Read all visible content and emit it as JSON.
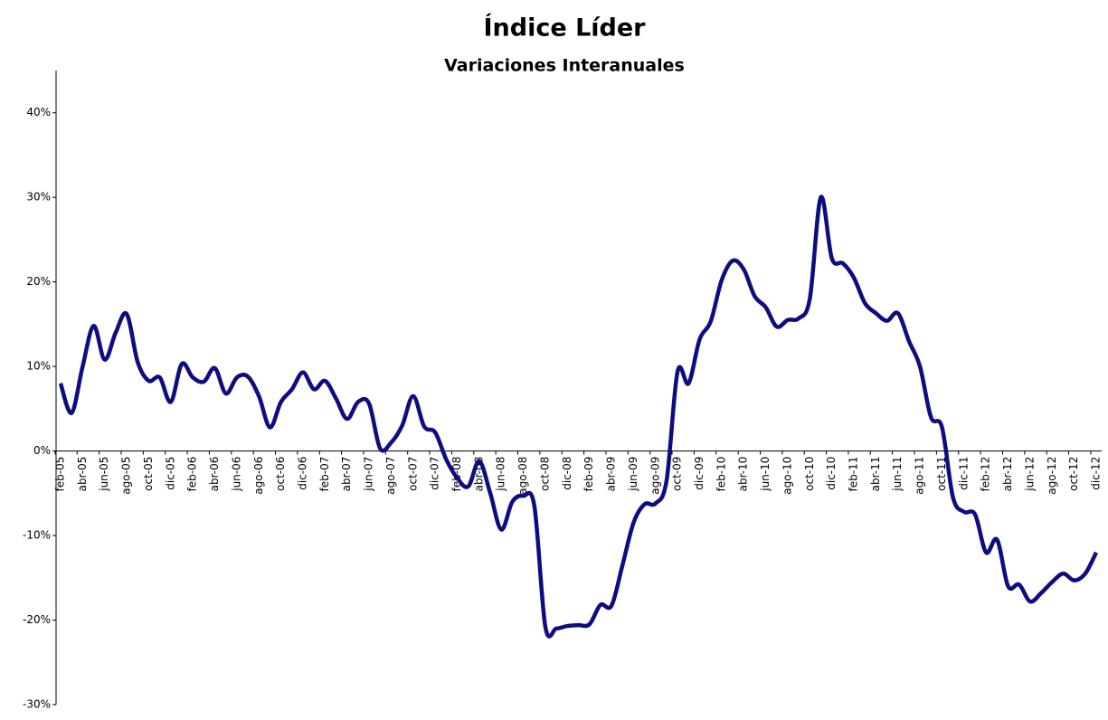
{
  "chart_data": {
    "type": "line",
    "title": "Índice Líder",
    "subtitle": "Variaciones Interanuales",
    "categories": [
      "feb-05",
      null,
      "abr-05",
      null,
      "jun-05",
      null,
      "ago-05",
      null,
      "oct-05",
      null,
      "dic-05",
      null,
      "feb-06",
      null,
      "abr-06",
      null,
      "jun-06",
      null,
      "ago-06",
      null,
      "oct-06",
      null,
      "dic-06",
      null,
      "feb-07",
      null,
      "abr-07",
      null,
      "jun-07",
      null,
      "ago-07",
      null,
      "oct-07",
      null,
      "dic-07",
      null,
      "feb-08",
      null,
      "abr-08",
      null,
      "jun-08",
      null,
      "ago-08",
      null,
      "oct-08",
      null,
      "dic-08",
      null,
      "feb-09",
      null,
      "abr-09",
      null,
      "jun-09",
      null,
      "ago-09",
      null,
      "oct-09",
      null,
      "dic-09",
      null,
      "feb-10",
      null,
      "abr-10",
      null,
      "jun-10",
      null,
      "ago-10",
      null,
      "oct-10",
      null,
      "dic-10",
      null,
      "feb-11",
      null,
      "abr-11",
      null,
      "jun-11",
      null,
      "ago-11",
      null,
      "oct-11",
      null,
      "dic-11",
      null,
      "feb-12",
      null,
      "abr-12",
      null,
      "jun-12",
      null,
      "ago-12",
      null,
      "oct-12",
      null,
      "dic-12"
    ],
    "series": [
      {
        "color": "#0d0d80",
        "values": [
          8,
          4.5,
          10,
          14.8,
          10.8,
          14,
          16.2,
          10.5,
          8.3,
          8.7,
          5.8,
          10.3,
          8.7,
          8.2,
          9.8,
          6.8,
          8.7,
          8.8,
          6.5,
          2.8,
          5.8,
          7.3,
          9.3,
          7.3,
          8.3,
          6.2,
          3.8,
          5.8,
          5.6,
          0.3,
          1.0,
          3.0,
          6.5,
          2.9,
          2.2,
          -1.0,
          -3.2,
          -4.2,
          -1.2,
          -5.0,
          -9.3,
          -6.0,
          -5.3,
          -6.5,
          -20.8,
          -21.0,
          -20.7,
          -20.6,
          -20.5,
          -18.2,
          -18.3,
          -13.5,
          -8.5,
          -6.3,
          -6.2,
          -3.5,
          9.4,
          8.0,
          13.2,
          15.3,
          20.2,
          22.5,
          21.5,
          18.3,
          17.0,
          14.7,
          15.5,
          15.7,
          18.0,
          30.0,
          22.8,
          22.2,
          20.5,
          17.5,
          16.3,
          15.4,
          16.3,
          13.0,
          10.0,
          4.0,
          2.8,
          -5.5,
          -7.2,
          -7.5,
          -12.0,
          -10.5,
          -16.0,
          -15.8,
          -17.8,
          -16.8,
          -15.5,
          -14.5,
          -15.3,
          -14.5,
          -12.0
        ]
      }
    ],
    "ylim": [
      -30,
      45
    ],
    "yticks": [
      {
        "value": -30,
        "label": "-30%"
      },
      {
        "value": -20,
        "label": "-20%"
      },
      {
        "value": -10,
        "label": "-10%"
      },
      {
        "value": 0,
        "label": "0%"
      },
      {
        "value": 10,
        "label": "10%"
      },
      {
        "value": 20,
        "label": "20%"
      },
      {
        "value": 30,
        "label": "30%"
      },
      {
        "value": 40,
        "label": "40%"
      }
    ],
    "grid": false
  }
}
